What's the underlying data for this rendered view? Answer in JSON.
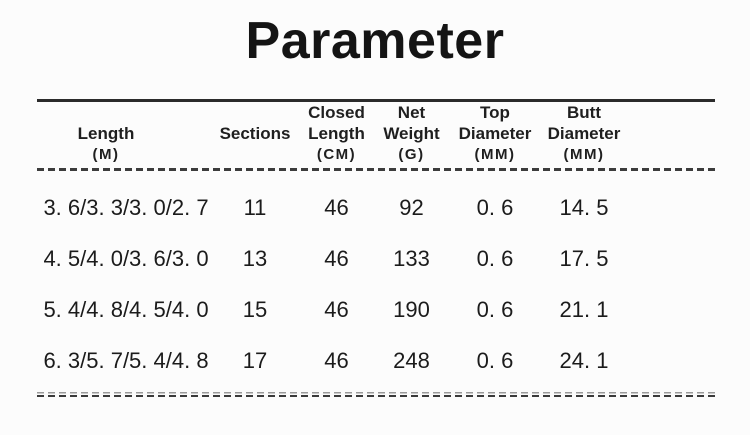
{
  "title": "Parameter",
  "table": {
    "columns": [
      {
        "name": "Length",
        "unit": "(M)"
      },
      {
        "name": "Sections",
        "unit": ""
      },
      {
        "name": "Closed Length",
        "unit": "(CM)"
      },
      {
        "name": "Net Weight",
        "unit": "(G)"
      },
      {
        "name": "Top Diameter",
        "unit": "(MM)"
      },
      {
        "name": "Butt Diameter",
        "unit": "(MM)"
      }
    ],
    "rows": [
      [
        "3. 6/3. 3/3. 0/2. 7",
        "11",
        "46",
        "92",
        "0. 6",
        "14. 5"
      ],
      [
        "4. 5/4. 0/3. 6/3. 0",
        "13",
        "46",
        "133",
        "0. 6",
        "17. 5"
      ],
      [
        "5. 4/4. 8/4. 5/4. 0",
        "15",
        "46",
        "190",
        "0. 6",
        "21. 1"
      ],
      [
        "6. 3/5. 7/5. 4/4. 8",
        "17",
        "46",
        "248",
        "0. 6",
        "24. 1"
      ]
    ]
  },
  "chart_data": {
    "type": "table",
    "title": "Parameter",
    "columns": [
      "Length (M)",
      "Sections",
      "Closed Length (CM)",
      "Net Weight (G)",
      "Top Diameter (MM)",
      "Butt Diameter (MM)"
    ],
    "rows": [
      [
        "3.6/3.3/3.0/2.7",
        11,
        46,
        92,
        0.6,
        14.5
      ],
      [
        "4.5/4.0/3.6/3.0",
        13,
        46,
        133,
        0.6,
        17.5
      ],
      [
        "5.4/4.8/4.5/4.0",
        15,
        46,
        190,
        0.6,
        21.1
      ],
      [
        "6.3/5.7/5.4/4.8",
        17,
        46,
        248,
        0.6,
        24.1
      ]
    ]
  },
  "colors": {
    "text": "#1b1b1b",
    "line_solid": "#2b2b2b",
    "line_dashed": "#3c3c3c",
    "background": "#fcfcfc"
  }
}
